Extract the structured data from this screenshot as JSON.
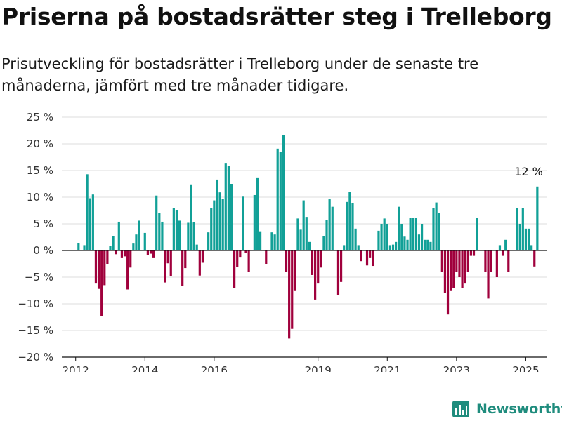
{
  "page": {
    "title": "Priserna på bostadsrätter steg i Trelleborg",
    "subtitle": "Prisutveckling för bostadsrätter i Trelleborg under de senaste tre månaderna, jämfört med tre månader tidigare.",
    "brand": "Newsworthy"
  },
  "colors": {
    "positive": "#11a097",
    "negative": "#a0003c",
    "grid": "#dcdcdc",
    "axis": "#111111",
    "brand": "#1f8c7d"
  },
  "chart_data": {
    "type": "bar",
    "ylim": [
      -20,
      25
    ],
    "yticks": [
      25,
      20,
      15,
      10,
      5,
      0,
      -5,
      -10,
      -15,
      -20
    ],
    "ytick_labels": [
      "25 %",
      "20 %",
      "15 %",
      "10 %",
      "5 %",
      "0 %",
      "−5 %",
      "−10 %",
      "−15 %",
      "−20 %"
    ],
    "xlim": [
      2011.6,
      2025.6
    ],
    "xticks": [
      2012,
      2014,
      2016,
      2019,
      2021,
      2023,
      2025
    ],
    "xtick_labels": [
      "2012",
      "2014",
      "2016",
      "2019",
      "2021",
      "2023",
      "2025"
    ],
    "grid": true,
    "start": "2012-01",
    "step": "month",
    "series": [
      {
        "values": [
          0,
          1.4,
          0,
          1.0,
          14.3,
          9.8,
          10.5,
          -6.2,
          -7.2,
          -12.3,
          -6.5,
          -2.5,
          0.8,
          2.7,
          -0.7,
          5.4,
          -1.3,
          -1.1,
          -7.3,
          -3.2,
          1.3,
          3.0,
          5.6,
          0,
          3.3,
          -0.9,
          -0.6,
          -1.3,
          10.3,
          7.1,
          5.4,
          -6.0,
          -2.4,
          -4.8,
          8.0,
          7.5,
          5.6,
          -6.6,
          -3.3,
          5.2,
          12.4,
          5.3,
          1.1,
          -4.7,
          -2.3,
          0,
          3.4,
          8.0,
          9.4,
          13.3,
          10.9,
          9.7,
          16.3,
          15.8,
          12.5,
          -7.1,
          -3.1,
          -1.2,
          10.1,
          -0.4,
          -4.0,
          0,
          10.4,
          13.7,
          3.6,
          0,
          -2.5,
          0,
          3.4,
          3.0,
          19.1,
          18.5,
          21.7,
          -4.0,
          -16.5,
          -14.7,
          -7.6,
          6.0,
          3.9,
          9.4,
          6.3,
          1.6,
          -4.6,
          -9.2,
          -6.2,
          -3.2,
          2.7,
          5.7,
          9.6,
          8.2,
          0,
          -8.4,
          -5.9,
          1.0,
          9.1,
          11.0,
          8.9,
          4.1,
          1.0,
          -2.0,
          0,
          -2.8,
          -1.3,
          -2.9,
          0,
          3.7,
          5.0,
          6.0,
          5.0,
          1.0,
          1.1,
          1.6,
          8.2,
          5.0,
          2.6,
          2.0,
          6.1,
          6.1,
          6.1,
          3.0,
          5.0,
          2.0,
          2.0,
          1.6,
          8.0,
          9.0,
          7.1,
          -4.0,
          -7.9,
          -12.0,
          -7.6,
          -7.0,
          -4.0,
          -5.0,
          -7.0,
          -6.2,
          -4.0,
          -1.0,
          -1.0,
          6.1,
          0,
          0,
          -4.0,
          -9.0,
          -4.0,
          0,
          -5.0,
          1.0,
          -1.0,
          2.0,
          -4.0,
          0,
          0,
          8.0,
          5.0,
          8.0,
          4.1,
          4.1,
          1.0,
          -3.0,
          12.0
        ]
      }
    ],
    "annotation": {
      "text": "12 %",
      "x": "2025-02",
      "y": 12.0
    }
  }
}
